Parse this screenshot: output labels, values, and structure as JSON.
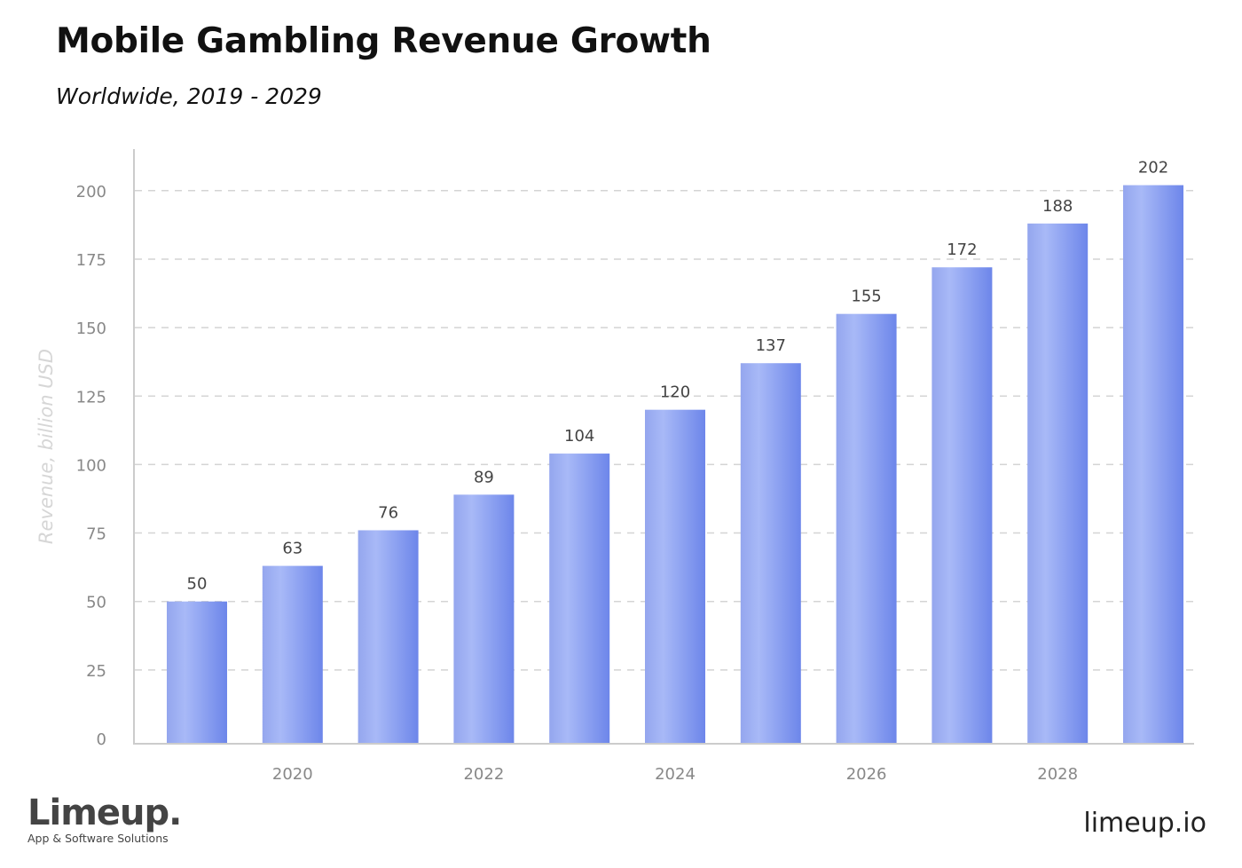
{
  "chart_data": {
    "type": "bar",
    "title": "Mobile Gambling Revenue Growth",
    "subtitle": "Worldwide, 2019 - 2029",
    "ylabel": "Revenue, billion USD",
    "xlabel": "",
    "categories": [
      "2019",
      "2020",
      "2021",
      "2022",
      "2023",
      "2024",
      "2025",
      "2026",
      "2027",
      "2028",
      "2029"
    ],
    "x_tick_labels": [
      "2020",
      "2022",
      "2024",
      "2026",
      "2028"
    ],
    "values": [
      50,
      63,
      76,
      89,
      104,
      120,
      137,
      155,
      172,
      188,
      202
    ],
    "y_ticks": [
      0,
      25,
      50,
      75,
      100,
      125,
      150,
      175,
      200
    ],
    "ylim": [
      0,
      200
    ],
    "grid": "horizontal dashed",
    "bar_color_light": "#a7b8f7",
    "bar_color_dark": "#6f88ea"
  },
  "branding": {
    "logo": "Limeup.",
    "tagline": "App & Software Solutions",
    "site": "limeup.io"
  }
}
